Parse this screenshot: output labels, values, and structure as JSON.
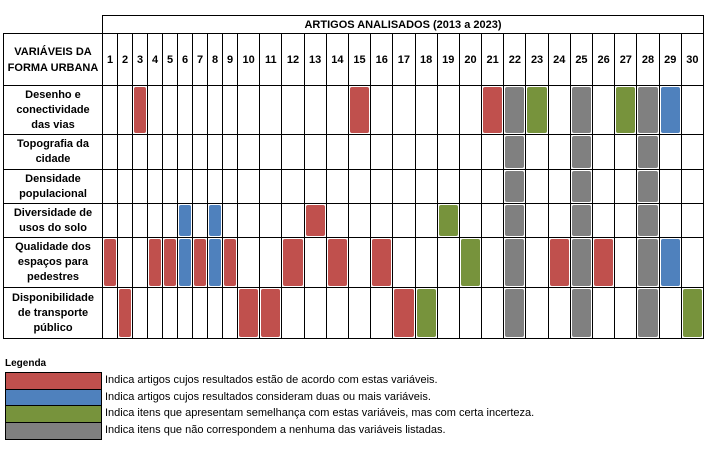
{
  "table": {
    "title": "ARTIGOS ANALISADOS (2013 a 2023)",
    "corner": [
      "VARIÁVEIS DA",
      "FORMA URBANA"
    ],
    "columns": [
      1,
      2,
      3,
      4,
      5,
      6,
      7,
      8,
      9,
      10,
      11,
      12,
      13,
      14,
      15,
      16,
      17,
      18,
      19,
      20,
      21,
      22,
      23,
      24,
      25,
      26,
      27,
      28,
      29,
      30
    ],
    "rows": [
      {
        "label": [
          "Desenho e",
          "conectividade",
          "das vias"
        ],
        "cells": [
          null,
          null,
          "red",
          null,
          null,
          null,
          null,
          null,
          null,
          null,
          null,
          null,
          null,
          null,
          "red",
          null,
          null,
          null,
          null,
          null,
          "red",
          "gray",
          "green",
          null,
          "gray",
          null,
          "green",
          "gray",
          "blue",
          null
        ]
      },
      {
        "label": [
          "Topografia da",
          "cidade"
        ],
        "cells": [
          null,
          null,
          null,
          null,
          null,
          null,
          null,
          null,
          null,
          null,
          null,
          null,
          null,
          null,
          null,
          null,
          null,
          null,
          null,
          null,
          null,
          "gray",
          null,
          null,
          "gray",
          null,
          null,
          "gray",
          null,
          null
        ]
      },
      {
        "label": [
          "Densidade",
          "populacional"
        ],
        "cells": [
          null,
          null,
          null,
          null,
          null,
          null,
          null,
          null,
          null,
          null,
          null,
          null,
          null,
          null,
          null,
          null,
          null,
          null,
          null,
          null,
          null,
          "gray",
          null,
          null,
          "gray",
          null,
          null,
          "gray",
          null,
          null
        ]
      },
      {
        "label": [
          "Diversidade de",
          "usos do solo"
        ],
        "cells": [
          null,
          null,
          null,
          null,
          null,
          "blue",
          null,
          "blue",
          null,
          null,
          null,
          null,
          "red",
          null,
          null,
          null,
          null,
          null,
          "green",
          null,
          null,
          "gray",
          null,
          null,
          "gray",
          null,
          null,
          "gray",
          null,
          null
        ]
      },
      {
        "label": [
          "Qualidade dos",
          "espaços para",
          "pedestres"
        ],
        "cells": [
          "red",
          null,
          null,
          "red",
          "red",
          "blue",
          "red",
          "blue",
          "red",
          null,
          null,
          "red",
          null,
          "red",
          null,
          "red",
          null,
          null,
          null,
          "green",
          null,
          "gray",
          null,
          "red",
          "gray",
          "red",
          null,
          "gray",
          "blue",
          null
        ]
      },
      {
        "label": [
          "Disponibilidade",
          "de transporte",
          "público"
        ],
        "cells": [
          null,
          "red",
          null,
          null,
          null,
          null,
          null,
          null,
          null,
          "red",
          "red",
          null,
          null,
          null,
          null,
          null,
          "red",
          "green",
          null,
          null,
          null,
          "gray",
          null,
          null,
          "gray",
          null,
          null,
          "gray",
          null,
          "green"
        ]
      }
    ]
  },
  "legend": {
    "title": "Legenda",
    "items": [
      {
        "key": "red",
        "color": "#c0504d",
        "text": "Indica artigos cujos resultados estão de acordo com estas variáveis."
      },
      {
        "key": "blue",
        "color": "#4f81bd",
        "text": "Indica artigos cujos resultados consideram duas ou mais variáveis."
      },
      {
        "key": "green",
        "color": "#77933c",
        "text": "Indica itens que apresentam semelhança com estas variáveis, mas com certa incerteza."
      },
      {
        "key": "gray",
        "color": "#808080",
        "text": "Indica itens que não correspondem a nenhuma das variáveis listadas."
      }
    ]
  }
}
